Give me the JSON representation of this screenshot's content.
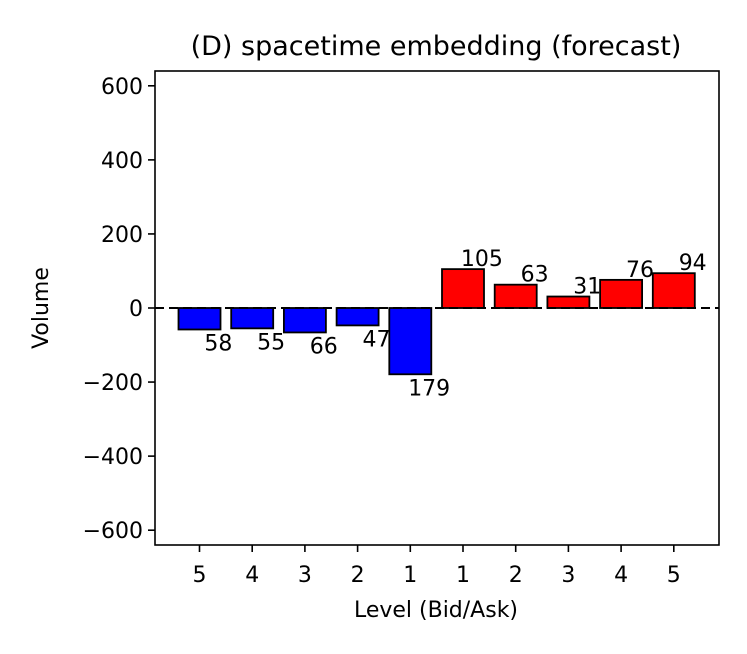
{
  "chart_data": {
    "type": "bar",
    "title": "(D) spacetime embedding (forecast)",
    "xlabel": "Level (Bid/Ask)",
    "ylabel": "Volume",
    "ylim": [
      -640,
      640
    ],
    "yticks": [
      -600,
      -400,
      -200,
      0,
      200,
      400,
      600
    ],
    "ytick_labels": [
      "−600",
      "−400",
      "−200",
      "0",
      "200",
      "400",
      "600"
    ],
    "categories": [
      "5",
      "4",
      "3",
      "2",
      "1",
      "1",
      "2",
      "3",
      "4",
      "5"
    ],
    "values": [
      -58,
      -55,
      -66,
      -47,
      -179,
      105,
      63,
      31,
      76,
      94
    ],
    "value_labels": [
      "58",
      "55",
      "66",
      "47",
      "179",
      "105",
      "63",
      "31",
      "76",
      "94"
    ],
    "sides": [
      "bid",
      "bid",
      "bid",
      "bid",
      "bid",
      "ask",
      "ask",
      "ask",
      "ask",
      "ask"
    ],
    "colors": {
      "bid": "#0000ff",
      "ask": "#ff0000",
      "edge": "#000000"
    },
    "zero_line": "dashed",
    "grid": false
  }
}
